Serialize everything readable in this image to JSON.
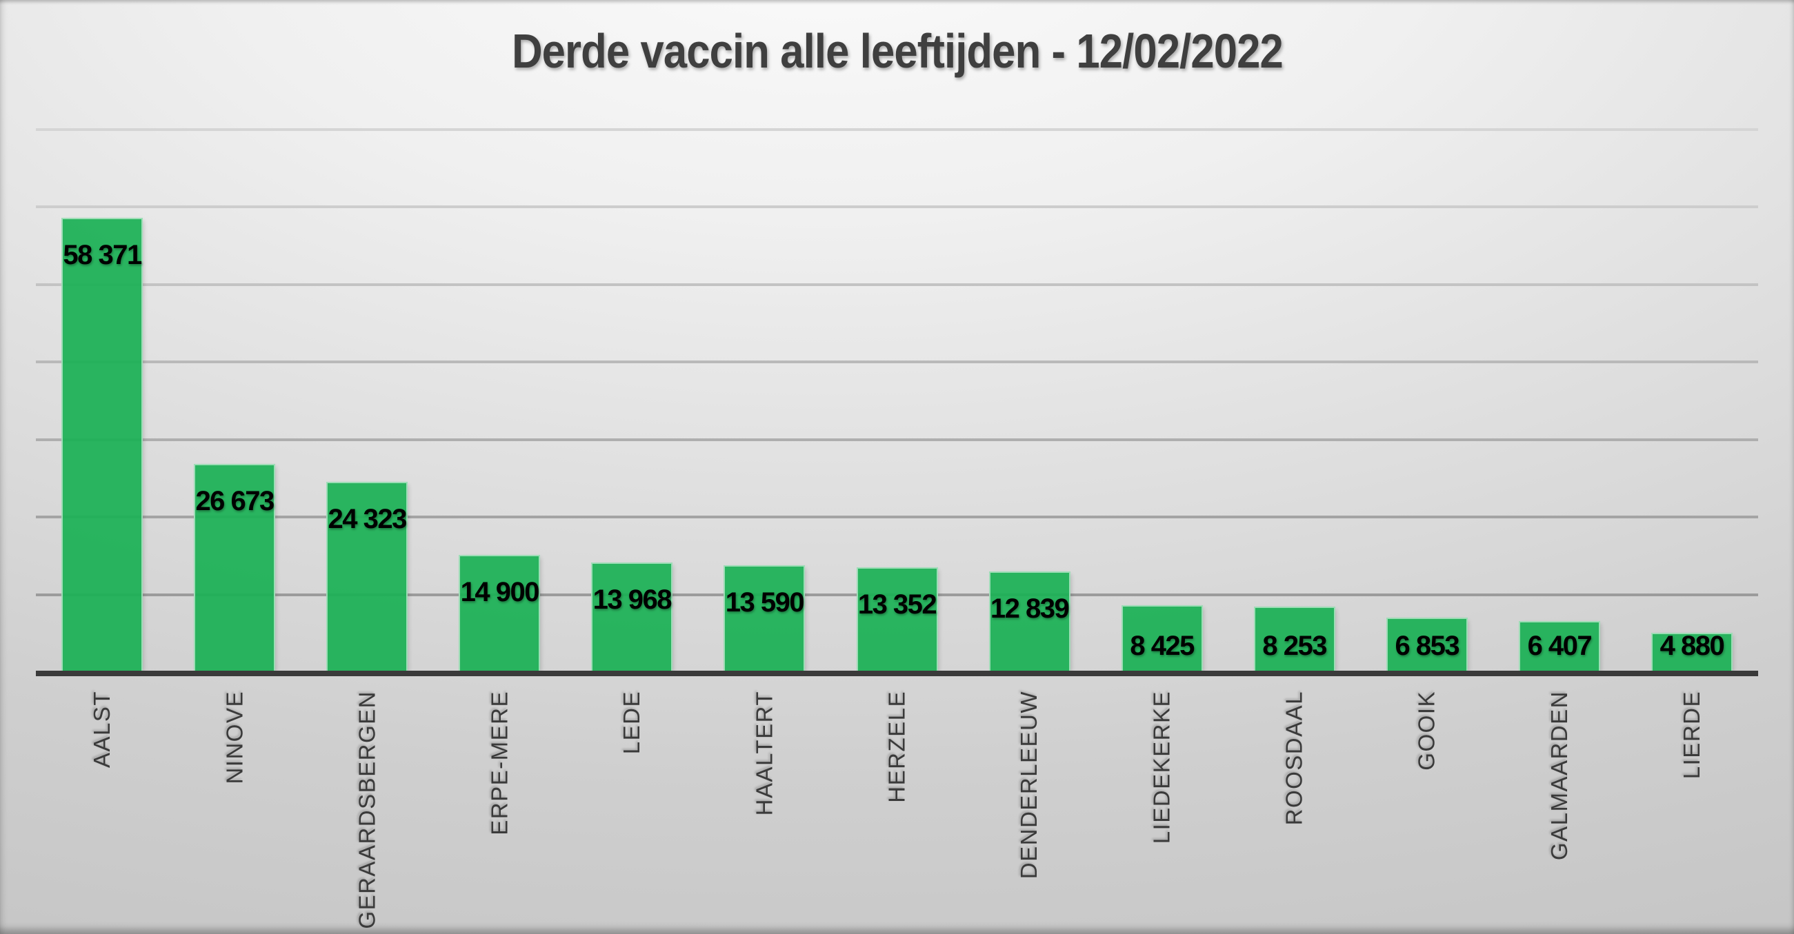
{
  "chart_data": {
    "type": "bar",
    "title": "Derde vaccin alle leeftijden - 12/02/2022",
    "categories": [
      "AALST",
      "NINOVE",
      "GERAARDSBERGEN",
      "ERPE-MERE",
      "LEDE",
      "HAALTERT",
      "HERZELE",
      "DENDERLEEUW",
      "LIEDEKERKE",
      "ROOSDAAL",
      "GOOIK",
      "GALMAARDEN",
      "LIERDE"
    ],
    "values": [
      58371,
      26673,
      24323,
      14900,
      13968,
      13590,
      13352,
      12839,
      8425,
      8253,
      6853,
      6407,
      4880
    ],
    "value_labels": [
      "58 371",
      "26 673",
      "24 323",
      "14 900",
      "13 968",
      "13 590",
      "13 352",
      "12 839",
      "8 425",
      "8 253",
      "6 853",
      "6 407",
      "4 880"
    ],
    "xlabel": "",
    "ylabel": "",
    "ylim": [
      0,
      75000
    ],
    "gridline_step": 10000,
    "grid": "horizontal",
    "legend": "none",
    "y_axis_tick_labels": "none",
    "category_label_style": "rotated-90-bottom-to-top",
    "value_label_position": "inside-end",
    "bar_color": "#29b35f",
    "bar_border_color": "#e4f3ea",
    "value_label_color": "#000000",
    "category_label_color": "#3a3a3a",
    "axis_line_color": "#3a3a3a",
    "title_color": "#3f3f3f",
    "gridline_colors_bottom_to_top": [
      "#9b9b9b",
      "#a4a4a4",
      "#aeaeae",
      "#b9b9b9",
      "#c3c3c3",
      "#cdcdcd",
      "#d5d5d5"
    ]
  }
}
